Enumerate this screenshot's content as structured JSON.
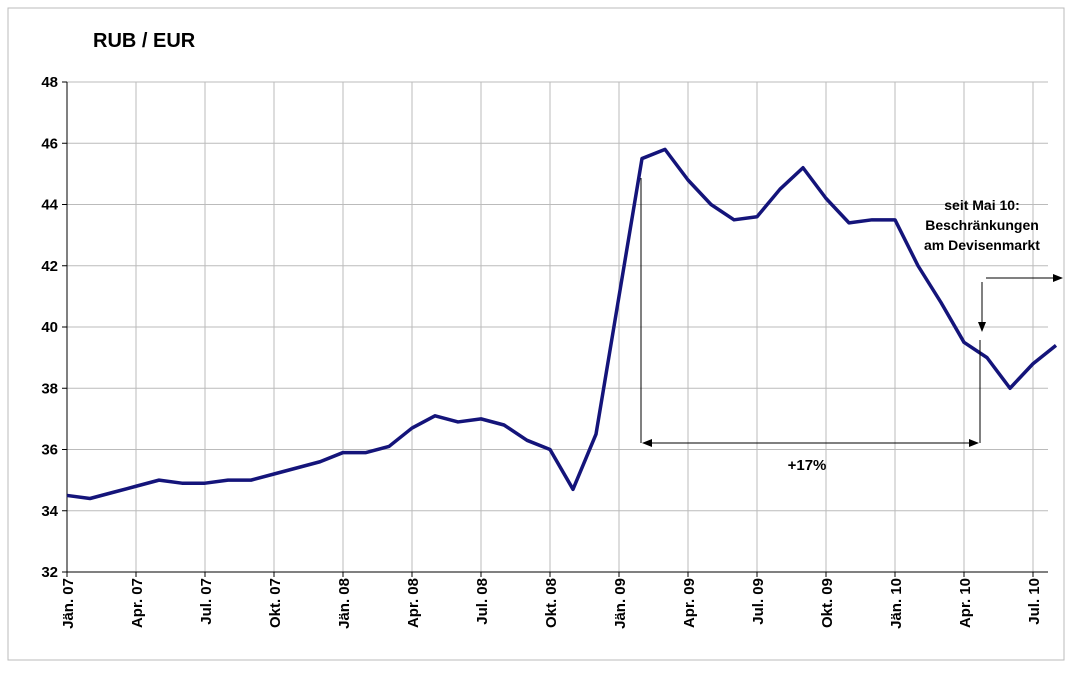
{
  "chart_data": {
    "type": "line",
    "title": "RUB / EUR",
    "categories": [
      "Jän. 07",
      null,
      null,
      "Apr. 07",
      null,
      null,
      "Jul. 07",
      null,
      null,
      "Okt. 07",
      null,
      null,
      "Jän. 08",
      null,
      null,
      "Apr. 08",
      null,
      null,
      "Jul. 08",
      null,
      null,
      "Okt. 08",
      null,
      null,
      "Jän. 09",
      null,
      null,
      "Apr. 09",
      null,
      null,
      "Jul. 09",
      null,
      null,
      "Okt. 09",
      null,
      null,
      "Jän. 10",
      null,
      null,
      "Apr. 10",
      null,
      null,
      "Jul. 10",
      null
    ],
    "series": [
      {
        "name": "RUB / EUR",
        "color": "#14147a",
        "values": [
          34.5,
          34.4,
          34.6,
          34.8,
          35.0,
          34.9,
          34.9,
          35.0,
          35.0,
          35.2,
          35.4,
          35.6,
          35.9,
          35.9,
          36.1,
          36.7,
          37.1,
          36.9,
          37.0,
          36.8,
          36.3,
          36.0,
          34.7,
          36.5,
          41.0,
          45.5,
          45.8,
          44.8,
          44.0,
          43.5,
          43.6,
          44.5,
          45.2,
          44.2,
          43.4,
          43.5,
          43.5,
          42.0,
          40.8,
          39.5,
          39.0,
          38.0,
          38.8,
          39.4
        ]
      }
    ],
    "ylim": [
      32,
      48
    ],
    "yticks": [
      32,
      34,
      36,
      38,
      40,
      42,
      44,
      46,
      48
    ],
    "grid": true,
    "annotations": [
      "+17%",
      "seit Mai 10:",
      "Beschränkungen",
      "am Devisenmarkt"
    ]
  }
}
